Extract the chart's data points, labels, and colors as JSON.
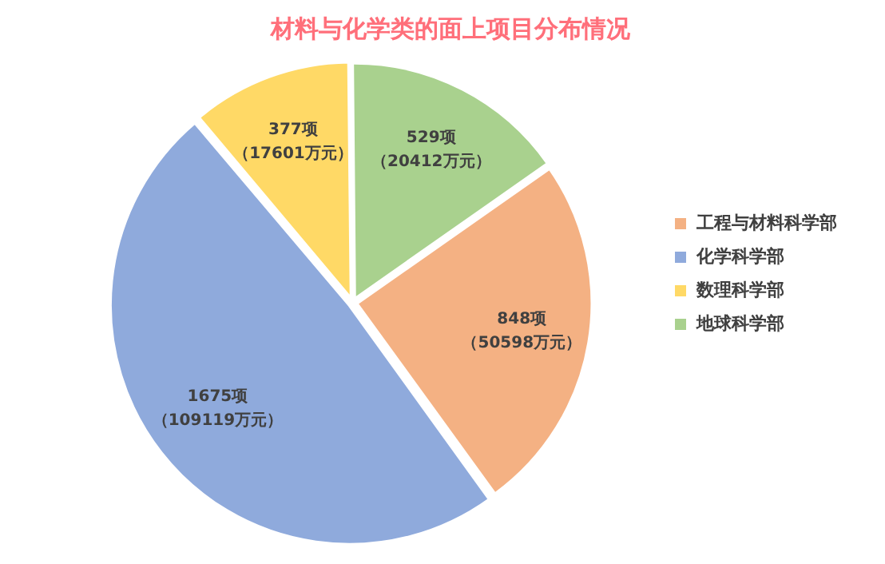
{
  "chart_data": {
    "type": "pie",
    "title": "材料与化学类的面上项目分布情况",
    "categories": [
      "工程与材料科学部",
      "化学科学部",
      "数理科学部",
      "地球科学部"
    ],
    "values": [
      848,
      1675,
      377,
      529
    ],
    "colors": [
      "#f4b183",
      "#8faadc",
      "#ffd966",
      "#a9d18e"
    ],
    "value_labels": [
      "848项（50598万元）",
      "1675项（109119万元）",
      "377项（17601万元）",
      "529项（20412万元）"
    ],
    "legend": "right"
  }
}
